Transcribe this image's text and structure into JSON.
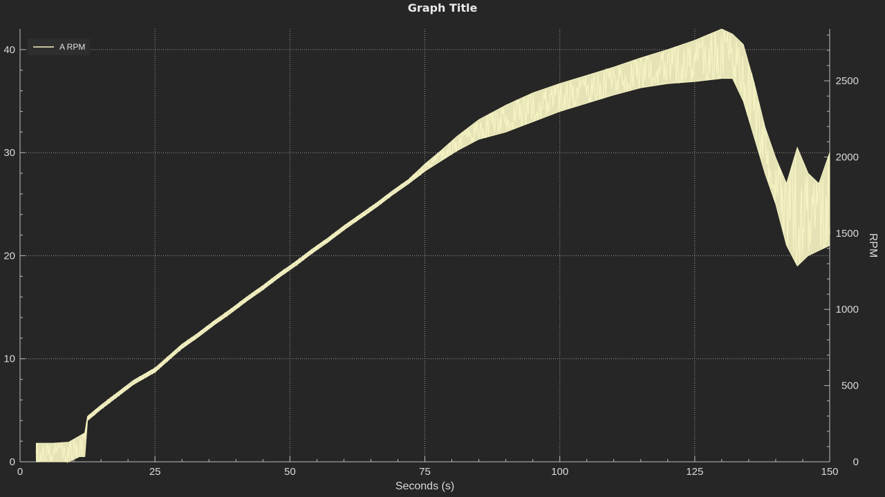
{
  "chart_data": {
    "type": "line",
    "title": "Graph Title",
    "xlabel": "Seconds (s)",
    "ylabel_left": "",
    "ylabel_right": "RPM",
    "xlim": [
      0,
      150
    ],
    "ylim_left": [
      0,
      42
    ],
    "ylim_right": [
      0,
      2840
    ],
    "x_ticks": [
      0,
      25,
      50,
      75,
      100,
      125,
      150
    ],
    "y_left_ticks": [
      0,
      10,
      20,
      30,
      40
    ],
    "y_right_ticks": [
      0,
      500,
      1000,
      1500,
      2000,
      2500
    ],
    "grid": true,
    "legend": {
      "position": "top-left",
      "entries": [
        "A RPM"
      ]
    },
    "series": [
      {
        "name": "A RPM",
        "axis": "left",
        "color": "#f5f3c2",
        "x": [
          3,
          6,
          9,
          11,
          12,
          12.5,
          15,
          18,
          21,
          25,
          30,
          33,
          36,
          39,
          42,
          45,
          48,
          51,
          54,
          57,
          60,
          63,
          66,
          69,
          72,
          75,
          78,
          81,
          85,
          90,
          95,
          100,
          105,
          110,
          115,
          120,
          125,
          130,
          132,
          134,
          136,
          138,
          140,
          142,
          144,
          146,
          148,
          150
        ],
        "y_low": [
          0,
          0,
          0,
          0.5,
          0.5,
          4,
          5.1,
          6.3,
          7.5,
          8.7,
          11,
          12.1,
          13.3,
          14.4,
          15.6,
          16.7,
          17.9,
          19,
          20.2,
          21.3,
          22.5,
          23.6,
          24.7,
          25.9,
          27,
          28.2,
          29.2,
          30.2,
          31.3,
          32,
          33,
          34,
          34.8,
          35.6,
          36.3,
          36.7,
          36.9,
          37.2,
          37.2,
          35,
          31.5,
          28,
          25,
          21,
          19,
          20,
          20.5,
          21
        ],
        "y_high": [
          1.8,
          1.8,
          1.9,
          2.5,
          2.8,
          4.4,
          5.5,
          6.7,
          7.9,
          9.1,
          11.4,
          12.5,
          13.7,
          14.8,
          16,
          17.1,
          18.3,
          19.4,
          20.6,
          21.7,
          22.9,
          24,
          25.1,
          26.3,
          27.4,
          28.9,
          30.2,
          31.6,
          33.2,
          34.6,
          35.8,
          36.7,
          37.5,
          38.3,
          39.2,
          40,
          40.9,
          42,
          41.5,
          40.5,
          36.8,
          32.5,
          29.5,
          27,
          30.5,
          28,
          27,
          30
        ]
      }
    ]
  }
}
